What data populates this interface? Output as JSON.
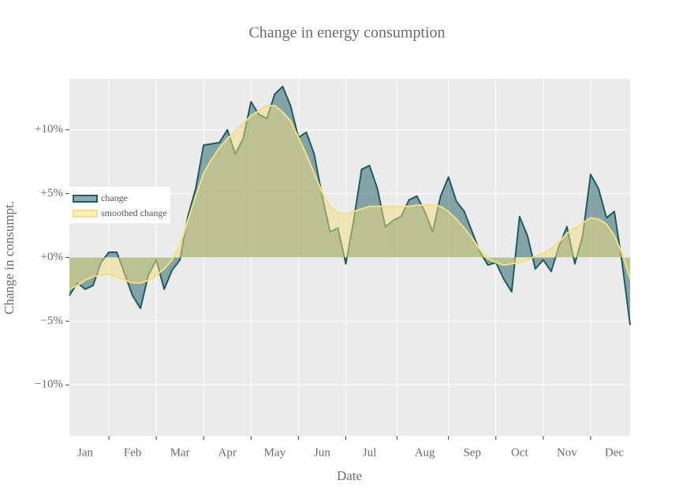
{
  "chart_data": {
    "type": "area",
    "title": "Change in energy consumption",
    "x_label": "Date",
    "y_label": "Change in consumpt.",
    "categories": [
      null,
      null,
      "Jan",
      null,
      null,
      null,
      null,
      null,
      "Feb",
      null,
      null,
      null,
      null,
      null,
      "Mar",
      null,
      null,
      null,
      null,
      null,
      "Apr",
      null,
      null,
      null,
      null,
      null,
      "May",
      null,
      null,
      null,
      null,
      null,
      "Jun",
      null,
      null,
      null,
      null,
      null,
      "Jul",
      null,
      null,
      null,
      null,
      null,
      null,
      "Aug",
      null,
      null,
      null,
      null,
      null,
      "Sep",
      null,
      null,
      null,
      null,
      null,
      "Oct",
      null,
      null,
      null,
      null,
      null,
      "Nov",
      null,
      null,
      null,
      null,
      null,
      "Dec",
      null,
      null
    ],
    "series": [
      {
        "name": "change",
        "color": "#1d5c63",
        "values": [
          -3.0,
          -2.0,
          -2.5,
          -2.2,
          -0.4,
          0.4,
          0.4,
          -1.3,
          -3.0,
          -4.0,
          -1.4,
          -0.2,
          -2.5,
          -1.0,
          -0.2,
          3.2,
          5.4,
          8.8,
          8.9,
          9.0,
          10.0,
          8.1,
          9.3,
          12.2,
          11.2,
          10.9,
          12.8,
          13.4,
          11.9,
          9.4,
          9.8,
          8.1,
          4.8,
          2.0,
          2.3,
          -0.5,
          2.9,
          6.9,
          7.2,
          5.4,
          2.4,
          2.9,
          3.2,
          4.5,
          4.8,
          3.6,
          2.0,
          4.8,
          6.3,
          4.4,
          3.6,
          2.0,
          0.4,
          -0.6,
          -0.4,
          -1.7,
          -2.7,
          3.2,
          1.7,
          -0.9,
          -0.2,
          -1.1,
          0.9,
          2.4,
          -0.5,
          1.7,
          6.5,
          5.4,
          3.1,
          3.6,
          -0.5,
          -5.3
        ]
      },
      {
        "name": "smoothed change",
        "color": "#f3e07e",
        "values": [
          -2.5,
          -2.2,
          -1.8,
          -1.5,
          -1.4,
          -1.3,
          -1.5,
          -1.8,
          -2.0,
          -2.0,
          -1.8,
          -1.4,
          -0.9,
          -0.2,
          0.9,
          2.9,
          4.8,
          6.6,
          7.7,
          8.6,
          9.3,
          9.9,
          10.5,
          11.1,
          11.5,
          11.9,
          11.9,
          11.4,
          10.7,
          9.4,
          8.1,
          6.6,
          5.1,
          4.0,
          3.5,
          3.4,
          3.6,
          3.8,
          4.0,
          4.0,
          4.0,
          4.0,
          4.0,
          4.0,
          4.1,
          4.1,
          4.1,
          4.0,
          3.6,
          3.0,
          2.3,
          1.5,
          0.6,
          -0.1,
          -0.4,
          -0.6,
          -0.5,
          -0.4,
          -0.2,
          0.1,
          0.3,
          0.7,
          1.2,
          1.9,
          2.3,
          2.7,
          3.1,
          3.0,
          2.6,
          1.7,
          0.3,
          -1.7
        ]
      }
    ],
    "ylim": [
      -14,
      14
    ],
    "yticks": [
      {
        "value": -10,
        "label": "−10%"
      },
      {
        "value": -5,
        "label": "−5%"
      },
      {
        "value": 0,
        "label": "+0%"
      },
      {
        "value": 5,
        "label": "+5%"
      },
      {
        "value": 10,
        "label": "+10%"
      }
    ],
    "grid": true,
    "legend": "left"
  }
}
